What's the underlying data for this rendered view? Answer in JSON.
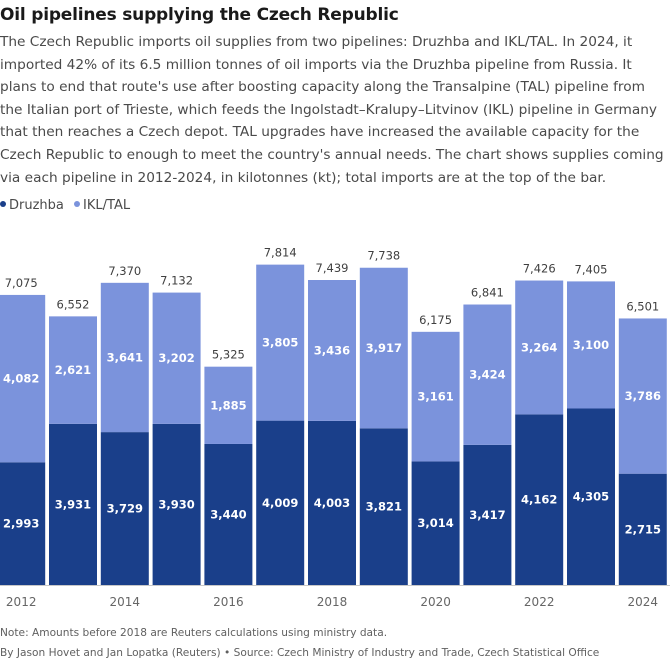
{
  "title": "Oil pipelines supplying the Czech Republic",
  "subtitle": "The Czech Republic imports oil supplies from two pipelines: Druzhba and IKL/TAL. In 2024, it imported 42% of its 6.5 million tonnes of oil imports via the Druzhba pipeline from Russia. It plans to end that route's use after boosting capacity along the Transalpine (TAL) pipeline from the Italian port of Trieste, which feeds the Ingolstadt–Kralupy–Litvinov (IKL) pipeline in Germany that then reaches a Czech depot. TAL upgrades have increased the available capacity for the Czech Republic to enough to meet the country's annual needs. The chart shows supplies coming via each pipeline in 2012-2024, in kilotonnes (kt); total imports are at the top of the bar.",
  "legend": [
    {
      "label": "Druzhba",
      "color": "#1a3f8a"
    },
    {
      "label": "IKL/TAL",
      "color": "#7b93dc"
    }
  ],
  "note": "Note: Amounts before 2018 are Reuters calculations using ministry data.",
  "source": "By Jason Hovet and Jan Lopatka (Reuters) • Source: Czech Ministry of Industry and Trade, Czech Statistical Office",
  "chart_data": {
    "type": "bar",
    "stacked": true,
    "categories": [
      "2012",
      "2013",
      "2014",
      "2015",
      "2016",
      "2017",
      "2018",
      "2019",
      "2020",
      "2021",
      "2022",
      "2023",
      "2024"
    ],
    "x_tick_labels": [
      "2012",
      "2014",
      "2016",
      "2018",
      "2020",
      "2022",
      "2024"
    ],
    "series": [
      {
        "name": "Druzhba",
        "color": "#1a3f8a",
        "values": [
          2993,
          3931,
          3729,
          3930,
          3440,
          4009,
          4003,
          3821,
          3014,
          3417,
          4162,
          4305,
          2715
        ]
      },
      {
        "name": "IKL/TAL",
        "color": "#7b93dc",
        "values": [
          4082,
          2621,
          3641,
          3202,
          1885,
          3805,
          3436,
          3917,
          3161,
          3424,
          3264,
          3100,
          3786
        ]
      }
    ],
    "totals": [
      7075,
      6552,
      7370,
      7132,
      5325,
      7814,
      7439,
      7738,
      6175,
      6841,
      7426,
      7405,
      6501
    ],
    "ylim": [
      0,
      8000
    ],
    "grid": false,
    "legend_position": "top-left"
  }
}
